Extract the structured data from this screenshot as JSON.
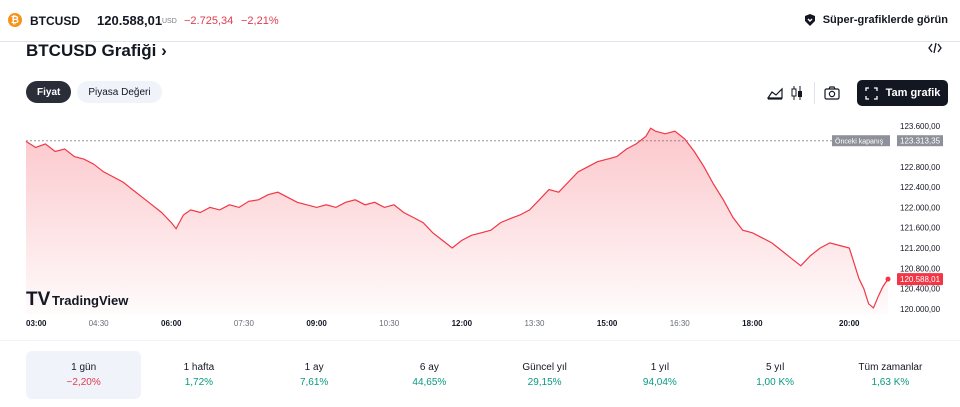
{
  "topbar": {
    "symbol": "BTCUSD",
    "price": "120.588,01",
    "currency": "USD",
    "change": "−2.725,34",
    "change_pct": "−2,21%",
    "super_charts_label": "Süper-grafiklerde görün"
  },
  "header": {
    "title": "BTCUSD Grafiği",
    "chevron": "›",
    "embed_icon": "code-icon"
  },
  "tabs": [
    {
      "label": "Fiyat",
      "active": true
    },
    {
      "label": "Piyasa Değeri",
      "active": false
    }
  ],
  "toolbar": {
    "area_icon": "area-chart-icon",
    "candle_icon": "candlestick-icon",
    "camera_icon": "camera-icon",
    "full_chart_label": "Tam grafik",
    "expand_icon": "expand-icon"
  },
  "chart_data": {
    "type": "area",
    "x_ticks": [
      "03:00",
      "04:30",
      "06:00",
      "07:30",
      "09:00",
      "10:30",
      "12:00",
      "13:30",
      "15:00",
      "16:30",
      "18:00",
      "20:00"
    ],
    "x_tick_bold": [
      true,
      false,
      true,
      false,
      true,
      false,
      true,
      false,
      true,
      false,
      true,
      true
    ],
    "x_range": [
      3.0,
      20.8
    ],
    "y_ticks": [
      "123.600,00",
      "122.800,00",
      "122.400,00",
      "122.000,00",
      "121.600,00",
      "121.200,00",
      "120.800,00",
      "120.400,00",
      "120.000,00"
    ],
    "y_tick_values": [
      123600,
      122800,
      122400,
      122000,
      121600,
      121200,
      120800,
      120400,
      120000
    ],
    "ylim": [
      119900,
      123800
    ],
    "series": [
      {
        "color": "#f23645",
        "points": [
          [
            3.0,
            123300
          ],
          [
            3.2,
            123180
          ],
          [
            3.4,
            123250
          ],
          [
            3.6,
            123100
          ],
          [
            3.8,
            123150
          ],
          [
            4.0,
            123000
          ],
          [
            4.2,
            122950
          ],
          [
            4.4,
            122850
          ],
          [
            4.6,
            122700
          ],
          [
            4.8,
            122600
          ],
          [
            5.0,
            122500
          ],
          [
            5.2,
            122350
          ],
          [
            5.4,
            122200
          ],
          [
            5.6,
            122050
          ],
          [
            5.8,
            121900
          ],
          [
            6.0,
            121700
          ],
          [
            6.1,
            121580
          ],
          [
            6.25,
            121850
          ],
          [
            6.4,
            121950
          ],
          [
            6.6,
            121900
          ],
          [
            6.8,
            122000
          ],
          [
            7.0,
            121950
          ],
          [
            7.2,
            122050
          ],
          [
            7.4,
            122000
          ],
          [
            7.6,
            122120
          ],
          [
            7.8,
            122150
          ],
          [
            8.0,
            122250
          ],
          [
            8.2,
            122300
          ],
          [
            8.4,
            122200
          ],
          [
            8.6,
            122100
          ],
          [
            8.8,
            122050
          ],
          [
            9.0,
            122000
          ],
          [
            9.2,
            122050
          ],
          [
            9.4,
            122000
          ],
          [
            9.6,
            122100
          ],
          [
            9.8,
            122150
          ],
          [
            10.0,
            122050
          ],
          [
            10.2,
            122100
          ],
          [
            10.4,
            122000
          ],
          [
            10.6,
            122050
          ],
          [
            10.8,
            121900
          ],
          [
            11.0,
            121800
          ],
          [
            11.2,
            121700
          ],
          [
            11.4,
            121500
          ],
          [
            11.6,
            121350
          ],
          [
            11.8,
            121200
          ],
          [
            12.0,
            121350
          ],
          [
            12.2,
            121450
          ],
          [
            12.4,
            121500
          ],
          [
            12.6,
            121550
          ],
          [
            12.8,
            121700
          ],
          [
            13.0,
            121780
          ],
          [
            13.2,
            121850
          ],
          [
            13.4,
            121950
          ],
          [
            13.6,
            122150
          ],
          [
            13.8,
            122350
          ],
          [
            14.0,
            122300
          ],
          [
            14.2,
            122500
          ],
          [
            14.4,
            122700
          ],
          [
            14.6,
            122800
          ],
          [
            14.8,
            122900
          ],
          [
            15.0,
            122950
          ],
          [
            15.2,
            123000
          ],
          [
            15.4,
            123150
          ],
          [
            15.6,
            123250
          ],
          [
            15.8,
            123400
          ],
          [
            15.9,
            123560
          ],
          [
            16.0,
            123500
          ],
          [
            16.2,
            123450
          ],
          [
            16.4,
            123500
          ],
          [
            16.6,
            123350
          ],
          [
            16.8,
            123100
          ],
          [
            17.0,
            122800
          ],
          [
            17.2,
            122450
          ],
          [
            17.4,
            122150
          ],
          [
            17.6,
            121800
          ],
          [
            17.8,
            121550
          ],
          [
            18.0,
            121500
          ],
          [
            18.2,
            121400
          ],
          [
            18.4,
            121300
          ],
          [
            18.6,
            121150
          ],
          [
            18.8,
            121000
          ],
          [
            19.0,
            120850
          ],
          [
            19.2,
            121050
          ],
          [
            19.4,
            121200
          ],
          [
            19.6,
            121300
          ],
          [
            19.8,
            121250
          ],
          [
            20.0,
            121200
          ],
          [
            20.1,
            120900
          ],
          [
            20.2,
            120600
          ],
          [
            20.3,
            120400
          ],
          [
            20.4,
            120100
          ],
          [
            20.5,
            120020
          ],
          [
            20.6,
            120250
          ],
          [
            20.7,
            120450
          ],
          [
            20.8,
            120588
          ]
        ]
      }
    ],
    "prev_close": {
      "value": 123313.35,
      "label": "Önceki kapanış",
      "value_label": "123.313,35"
    },
    "last_price": {
      "value": 120588.01,
      "value_label": "120.588,01"
    },
    "watermark": "TradingView"
  },
  "periods": [
    {
      "label": "1 gün",
      "value": "−2,20%",
      "sign": "neg",
      "active": true
    },
    {
      "label": "1 hafta",
      "value": "1,72%",
      "sign": "pos",
      "active": false
    },
    {
      "label": "1 ay",
      "value": "7,61%",
      "sign": "pos",
      "active": false
    },
    {
      "label": "6 ay",
      "value": "44,65%",
      "sign": "pos",
      "active": false
    },
    {
      "label": "Güncel yıl",
      "value": "29,15%",
      "sign": "pos",
      "active": false
    },
    {
      "label": "1 yıl",
      "value": "94,04%",
      "sign": "pos",
      "active": false
    },
    {
      "label": "5 yıl",
      "value": "1,00 K%",
      "sign": "pos",
      "active": false
    },
    {
      "label": "Tüm zamanlar",
      "value": "1,63 K%",
      "sign": "pos",
      "active": false
    }
  ]
}
